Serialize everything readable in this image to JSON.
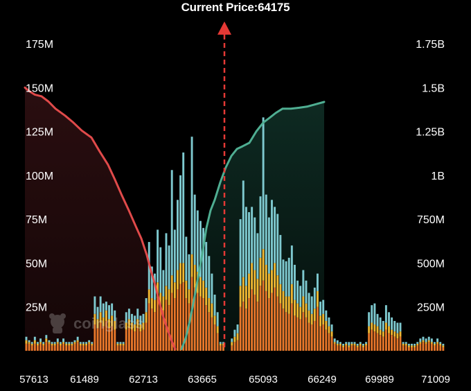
{
  "title": "Current Price:64175",
  "watermark": "coinglass",
  "colors": {
    "background": "#000000",
    "short_curve": "#e04a4a",
    "long_curve": "#4fae92",
    "short_fill": "#1e0a0b",
    "long_fill": "#081814",
    "bar_bottom": "#e8772a",
    "bar_mid": "#f0b732",
    "bar_top": "#7ec9cf",
    "price_marker": "#e53935"
  },
  "chart_data": {
    "type": "bar",
    "title": "Current Price:64175",
    "current_price": 64175,
    "x_tick_labels": [
      "57613",
      "61489",
      "62713",
      "63665",
      "65093",
      "66249",
      "69989",
      "71009"
    ],
    "left_axis": {
      "ticks": [
        "25M",
        "50M",
        "75M",
        "100M",
        "125M",
        "150M",
        "175M"
      ],
      "range": [
        0,
        175000000
      ]
    },
    "right_axis": {
      "ticks": [
        "250M",
        "500M",
        "750M",
        "1B",
        "1.25B",
        "1.5B",
        "1.75B"
      ],
      "range": [
        0,
        1750000000
      ]
    },
    "series_bars": [
      {
        "role": "bottom",
        "values": [
          4,
          4,
          3,
          4,
          3,
          4,
          3,
          5,
          4,
          3,
          3,
          4,
          3,
          4,
          3,
          3,
          3,
          4,
          5,
          3,
          3,
          3,
          4,
          3,
          15,
          13,
          16,
          14,
          17,
          13,
          14,
          12,
          3,
          3,
          3,
          12,
          13,
          12,
          11,
          13,
          11,
          12,
          16,
          27,
          24,
          22,
          30,
          25,
          23,
          29,
          26,
          33,
          30,
          35,
          38,
          39,
          30,
          27,
          42,
          36,
          33,
          31,
          30,
          26,
          22,
          19,
          15,
          10,
          3,
          3,
          0,
          0,
          3,
          5,
          6,
          25,
          28,
          24,
          30,
          35,
          32,
          28,
          37,
          40,
          34,
          30,
          33,
          36,
          31,
          27,
          24,
          22,
          21,
          27,
          20,
          19,
          18,
          22,
          19,
          16,
          15,
          17,
          25,
          14,
          15,
          12,
          10,
          8,
          4,
          3,
          3,
          2,
          3,
          2,
          3,
          3,
          2,
          3,
          2,
          3,
          10,
          12,
          11,
          10,
          9,
          8,
          12,
          10,
          9,
          8,
          7,
          8,
          3,
          3,
          2,
          2,
          2,
          3,
          4,
          5,
          4,
          5,
          4,
          3,
          4,
          3,
          2
        ]
      },
      {
        "role": "middle",
        "values": [
          2,
          1,
          1,
          2,
          1,
          1,
          1,
          2,
          1,
          1,
          1,
          1,
          1,
          1,
          1,
          1,
          1,
          1,
          1,
          1,
          1,
          1,
          1,
          1,
          6,
          5,
          6,
          5,
          6,
          5,
          6,
          5,
          1,
          1,
          1,
          4,
          5,
          4,
          4,
          5,
          4,
          4,
          6,
          8,
          6,
          7,
          9,
          8,
          8,
          8,
          9,
          10,
          9,
          11,
          12,
          11,
          10,
          8,
          13,
          13,
          12,
          11,
          10,
          10,
          8,
          8,
          5,
          4,
          1,
          1,
          0,
          0,
          2,
          3,
          4,
          12,
          14,
          13,
          14,
          15,
          14,
          13,
          16,
          18,
          15,
          14,
          13,
          14,
          12,
          11,
          10,
          9,
          10,
          11,
          9,
          8,
          7,
          9,
          8,
          7,
          6,
          7,
          9,
          6,
          6,
          5,
          4,
          3,
          1,
          1,
          1,
          1,
          1,
          1,
          1,
          1,
          1,
          1,
          1,
          1,
          4,
          4,
          4,
          4,
          3,
          3,
          4,
          4,
          3,
          3,
          3,
          3,
          1,
          1,
          1,
          1,
          1,
          1,
          1,
          1,
          1,
          1,
          1,
          1,
          1,
          1,
          1
        ]
      },
      {
        "role": "top",
        "values": [
          2,
          1,
          1,
          2,
          1,
          2,
          1,
          2,
          1,
          1,
          1,
          2,
          1,
          2,
          1,
          1,
          1,
          1,
          2,
          1,
          1,
          1,
          1,
          1,
          10,
          7,
          9,
          8,
          5,
          8,
          7,
          6,
          1,
          1,
          1,
          6,
          6,
          5,
          5,
          6,
          5,
          5,
          8,
          27,
          18,
          15,
          30,
          26,
          15,
          30,
          25,
          60,
          30,
          40,
          50,
          63,
          25,
          20,
          67,
          40,
          35,
          32,
          30,
          26,
          24,
          17,
          12,
          8,
          1,
          1,
          0,
          0,
          2,
          4,
          5,
          38,
          55,
          45,
          35,
          32,
          30,
          26,
          35,
          75,
          40,
          32,
          40,
          32,
          35,
          28,
          18,
          20,
          22,
          22,
          20,
          13,
          12,
          15,
          13,
          10,
          10,
          12,
          10,
          8,
          8,
          6,
          5,
          4,
          2,
          2,
          1,
          1,
          1,
          2,
          1,
          1,
          1,
          1,
          1,
          1,
          8,
          10,
          12,
          7,
          7,
          6,
          10,
          8,
          7,
          6,
          6,
          5,
          1,
          1,
          1,
          1,
          1,
          1,
          2,
          2,
          2,
          2,
          2,
          1,
          2,
          1,
          1
        ]
      }
    ],
    "series_lines": [
      {
        "role": "cumulative-short",
        "points": [
          [
            0,
            1500
          ],
          [
            6,
            1480
          ],
          [
            14,
            1460
          ],
          [
            24,
            1450
          ],
          [
            34,
            1420
          ],
          [
            44,
            1380
          ],
          [
            58,
            1340
          ],
          [
            70,
            1300
          ],
          [
            82,
            1255
          ],
          [
            96,
            1215
          ],
          [
            108,
            1135
          ],
          [
            120,
            1060
          ],
          [
            130,
            975
          ],
          [
            140,
            885
          ],
          [
            150,
            800
          ],
          [
            160,
            710
          ],
          [
            168,
            640
          ],
          [
            176,
            545
          ],
          [
            182,
            455
          ],
          [
            188,
            375
          ],
          [
            194,
            280
          ],
          [
            200,
            190
          ],
          [
            206,
            120
          ],
          [
            212,
            55
          ],
          [
            217,
            10
          ]
        ]
      },
      {
        "role": "cumulative-long",
        "points": [
          [
            226,
            10
          ],
          [
            232,
            70
          ],
          [
            238,
            170
          ],
          [
            244,
            290
          ],
          [
            250,
            420
          ],
          [
            256,
            550
          ],
          [
            262,
            700
          ],
          [
            268,
            800
          ],
          [
            274,
            860
          ],
          [
            282,
            960
          ],
          [
            290,
            1045
          ],
          [
            298,
            1110
          ],
          [
            306,
            1150
          ],
          [
            314,
            1165
          ],
          [
            324,
            1185
          ],
          [
            334,
            1250
          ],
          [
            344,
            1300
          ],
          [
            354,
            1330
          ],
          [
            362,
            1355
          ],
          [
            372,
            1380
          ],
          [
            384,
            1380
          ],
          [
            396,
            1385
          ],
          [
            408,
            1392
          ],
          [
            420,
            1405
          ],
          [
            432,
            1418
          ]
        ]
      }
    ],
    "legend": "none",
    "grid": false
  }
}
